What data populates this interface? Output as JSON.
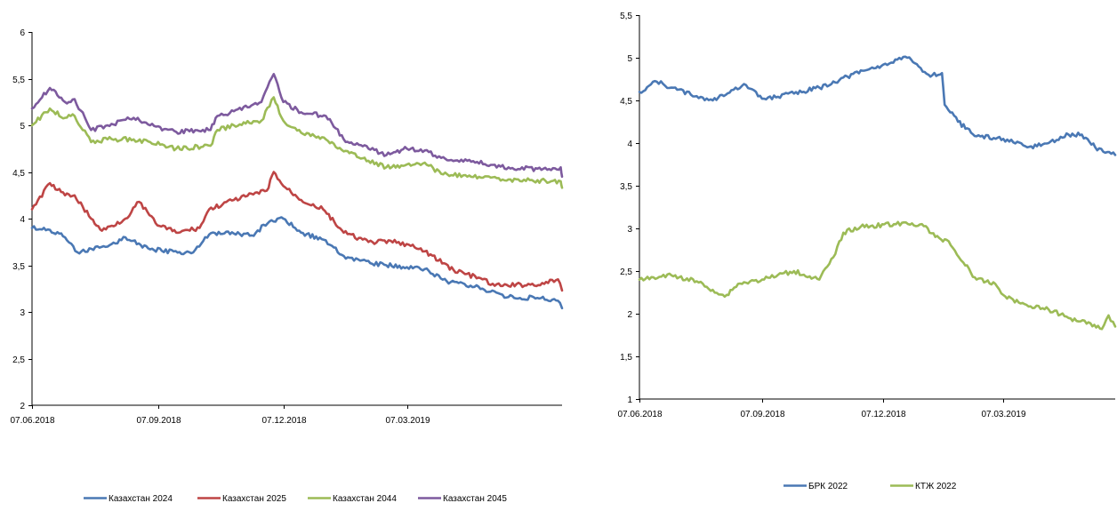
{
  "colors": {
    "blue": "#4a78b4",
    "red": "#be4545",
    "green": "#9cbb56",
    "purple": "#7d5a9e"
  },
  "chart_data": [
    {
      "type": "line",
      "x_ticks": [
        "07.06.2018",
        "07.09.2018",
        "07.12.2018",
        "07.03.2019"
      ],
      "x_range": [
        "07.06.2018",
        "28.06.2019"
      ],
      "ylim": [
        2,
        6
      ],
      "y_ticks": [
        "2",
        "2,5",
        "3",
        "3,5",
        "4",
        "4,5",
        "5",
        "5,5",
        "6"
      ],
      "legend_position": "bottom",
      "series": [
        {
          "name": "Казахстан 2024",
          "color": "#4a78b4",
          "points": [
            [
              "07.06.2018",
              3.9
            ],
            [
              "20.06.2018",
              3.88
            ],
            [
              "01.07.2018",
              3.8
            ],
            [
              "10.07.2018",
              3.64
            ],
            [
              "01.08.2018",
              3.7
            ],
            [
              "14.08.2018",
              3.8
            ],
            [
              "01.09.2018",
              3.67
            ],
            [
              "01.10.2018",
              3.63
            ],
            [
              "14.10.2018",
              3.83
            ],
            [
              "01.11.2018",
              3.84
            ],
            [
              "14.11.2018",
              3.82
            ],
            [
              "27.11.2018",
              3.97
            ],
            [
              "07.12.2018",
              4.0
            ],
            [
              "20.12.2018",
              3.85
            ],
            [
              "04.01.2019",
              3.78
            ],
            [
              "20.01.2019",
              3.6
            ],
            [
              "01.02.2019",
              3.55
            ],
            [
              "20.02.2019",
              3.5
            ],
            [
              "07.03.2019",
              3.48
            ],
            [
              "20.03.2019",
              3.46
            ],
            [
              "05.04.2019",
              3.33
            ],
            [
              "01.05.2019",
              3.25
            ],
            [
              "20.05.2019",
              3.16
            ],
            [
              "10.06.2019",
              3.15
            ],
            [
              "25.06.2019",
              3.12
            ],
            [
              "28.06.2019",
              3.04
            ]
          ]
        },
        {
          "name": "Казахстан 2025",
          "color": "#be4545",
          "points": [
            [
              "07.06.2018",
              4.1
            ],
            [
              "20.06.2018",
              4.38
            ],
            [
              "01.07.2018",
              4.25
            ],
            [
              "08.07.2018",
              4.25
            ],
            [
              "20.07.2018",
              4.0
            ],
            [
              "28.07.2018",
              3.87
            ],
            [
              "14.08.2018",
              4.0
            ],
            [
              "24.08.2018",
              4.18
            ],
            [
              "05.09.2018",
              3.95
            ],
            [
              "20.09.2018",
              3.85
            ],
            [
              "07.10.2018",
              3.9
            ],
            [
              "14.10.2018",
              4.1
            ],
            [
              "01.11.2018",
              4.2
            ],
            [
              "25.11.2018",
              4.3
            ],
            [
              "30.11.2018",
              4.5
            ],
            [
              "07.12.2018",
              4.35
            ],
            [
              "20.12.2018",
              4.2
            ],
            [
              "05.01.2019",
              4.1
            ],
            [
              "20.01.2019",
              3.85
            ],
            [
              "07.02.2019",
              3.75
            ],
            [
              "01.03.2019",
              3.75
            ],
            [
              "20.03.2019",
              3.65
            ],
            [
              "10.04.2019",
              3.45
            ],
            [
              "01.05.2019",
              3.35
            ],
            [
              "10.05.2019",
              3.28
            ],
            [
              "15.06.2019",
              3.3
            ],
            [
              "25.06.2019",
              3.35
            ],
            [
              "28.06.2019",
              3.23
            ]
          ]
        },
        {
          "name": "Казахстан 2044",
          "color": "#9cbb56",
          "points": [
            [
              "07.06.2018",
              5.0
            ],
            [
              "20.06.2018",
              5.18
            ],
            [
              "01.07.2018",
              5.08
            ],
            [
              "08.07.2018",
              5.1
            ],
            [
              "20.07.2018",
              4.82
            ],
            [
              "01.08.2018",
              4.85
            ],
            [
              "20.08.2018",
              4.85
            ],
            [
              "01.09.2018",
              4.82
            ],
            [
              "20.09.2018",
              4.75
            ],
            [
              "15.10.2018",
              4.78
            ],
            [
              "20.10.2018",
              4.95
            ],
            [
              "01.11.2018",
              5.0
            ],
            [
              "21.11.2018",
              5.05
            ],
            [
              "30.11.2018",
              5.3
            ],
            [
              "07.12.2018",
              5.05
            ],
            [
              "20.12.2018",
              4.92
            ],
            [
              "07.01.2019",
              4.85
            ],
            [
              "20.01.2019",
              4.72
            ],
            [
              "07.02.2019",
              4.62
            ],
            [
              "20.02.2019",
              4.55
            ],
            [
              "07.03.2019",
              4.58
            ],
            [
              "20.03.2019",
              4.6
            ],
            [
              "01.04.2019",
              4.48
            ],
            [
              "20.04.2019",
              4.45
            ],
            [
              "20.05.2019",
              4.42
            ],
            [
              "20.06.2019",
              4.4
            ],
            [
              "27.06.2019",
              4.4
            ],
            [
              "28.06.2019",
              4.33
            ]
          ]
        },
        {
          "name": "Казахстан 2045",
          "color": "#7d5a9e",
          "points": [
            [
              "07.06.2018",
              5.18
            ],
            [
              "20.06.2018",
              5.4
            ],
            [
              "01.07.2018",
              5.25
            ],
            [
              "08.07.2018",
              5.28
            ],
            [
              "20.07.2018",
              4.95
            ],
            [
              "01.08.2018",
              5.0
            ],
            [
              "20.08.2018",
              5.08
            ],
            [
              "01.09.2018",
              5.0
            ],
            [
              "20.09.2018",
              4.93
            ],
            [
              "15.10.2018",
              4.95
            ],
            [
              "20.10.2018",
              5.1
            ],
            [
              "01.11.2018",
              5.15
            ],
            [
              "21.11.2018",
              5.25
            ],
            [
              "30.11.2018",
              5.55
            ],
            [
              "07.12.2018",
              5.25
            ],
            [
              "20.12.2018",
              5.14
            ],
            [
              "07.01.2019",
              5.1
            ],
            [
              "20.01.2019",
              4.85
            ],
            [
              "07.02.2019",
              4.75
            ],
            [
              "20.02.2019",
              4.68
            ],
            [
              "07.03.2019",
              4.75
            ],
            [
              "20.03.2019",
              4.73
            ],
            [
              "01.04.2019",
              4.65
            ],
            [
              "20.04.2019",
              4.62
            ],
            [
              "20.05.2019",
              4.55
            ],
            [
              "20.06.2019",
              4.52
            ],
            [
              "27.06.2019",
              4.55
            ],
            [
              "28.06.2019",
              4.45
            ]
          ]
        }
      ]
    },
    {
      "type": "line",
      "x_ticks": [
        "07.06.2018",
        "07.09.2018",
        "07.12.2018",
        "07.03.2019"
      ],
      "x_range": [
        "07.06.2018",
        "30.05.2019"
      ],
      "ylim": [
        1,
        5.5
      ],
      "y_ticks": [
        "1",
        "1,5",
        "2",
        "2,5",
        "3",
        "3,5",
        "4",
        "4,5",
        "5",
        "5,5"
      ],
      "legend_position": "bottom",
      "series": [
        {
          "name": "БРК 2022",
          "color": "#4a78b4",
          "points": [
            [
              "07.06.2018",
              4.6
            ],
            [
              "20.06.2018",
              4.72
            ],
            [
              "01.07.2018",
              4.65
            ],
            [
              "20.07.2018",
              4.55
            ],
            [
              "01.08.2018",
              4.5
            ],
            [
              "15.08.2018",
              4.62
            ],
            [
              "26.08.2018",
              4.68
            ],
            [
              "07.09.2018",
              4.52
            ],
            [
              "01.10.2018",
              4.58
            ],
            [
              "20.10.2018",
              4.65
            ],
            [
              "10.11.2018",
              4.78
            ],
            [
              "23.11.2018",
              4.85
            ],
            [
              "07.12.2018",
              4.92
            ],
            [
              "25.12.2018",
              5.0
            ],
            [
              "04.01.2019",
              4.88
            ],
            [
              "10.01.2019",
              4.8
            ],
            [
              "20.01.2019",
              4.82
            ],
            [
              "22.01.2019",
              4.45
            ],
            [
              "01.02.2019",
              4.25
            ],
            [
              "15.02.2019",
              4.08
            ],
            [
              "07.03.2019",
              4.05
            ],
            [
              "25.03.2019",
              3.95
            ],
            [
              "10.04.2019",
              4.0
            ],
            [
              "25.04.2019",
              4.1
            ],
            [
              "05.05.2019",
              4.1
            ],
            [
              "15.05.2019",
              3.95
            ],
            [
              "30.05.2019",
              3.86
            ]
          ]
        },
        {
          "name": "КТЖ 2022",
          "color": "#9cbb56",
          "points": [
            [
              "07.06.2018",
              2.4
            ],
            [
              "01.07.2018",
              2.45
            ],
            [
              "20.07.2018",
              2.38
            ],
            [
              "01.08.2018",
              2.28
            ],
            [
              "10.08.2018",
              2.2
            ],
            [
              "20.08.2018",
              2.35
            ],
            [
              "07.09.2018",
              2.4
            ],
            [
              "01.10.2018",
              2.5
            ],
            [
              "20.10.2018",
              2.4
            ],
            [
              "01.11.2018",
              2.7
            ],
            [
              "07.11.2018",
              2.95
            ],
            [
              "20.11.2018",
              3.02
            ],
            [
              "15.12.2018",
              3.05
            ],
            [
              "05.01.2019",
              3.05
            ],
            [
              "15.01.2019",
              2.9
            ],
            [
              "25.01.2019",
              2.85
            ],
            [
              "05.02.2019",
              2.6
            ],
            [
              "15.02.2019",
              2.4
            ],
            [
              "01.03.2019",
              2.35
            ],
            [
              "07.03.2019",
              2.22
            ],
            [
              "20.03.2019",
              2.12
            ],
            [
              "10.04.2019",
              2.05
            ],
            [
              "25.04.2019",
              1.95
            ],
            [
              "10.05.2019",
              1.9
            ],
            [
              "20.05.2019",
              1.82
            ],
            [
              "25.05.2019",
              1.98
            ],
            [
              "30.05.2019",
              1.85
            ]
          ]
        }
      ]
    }
  ]
}
